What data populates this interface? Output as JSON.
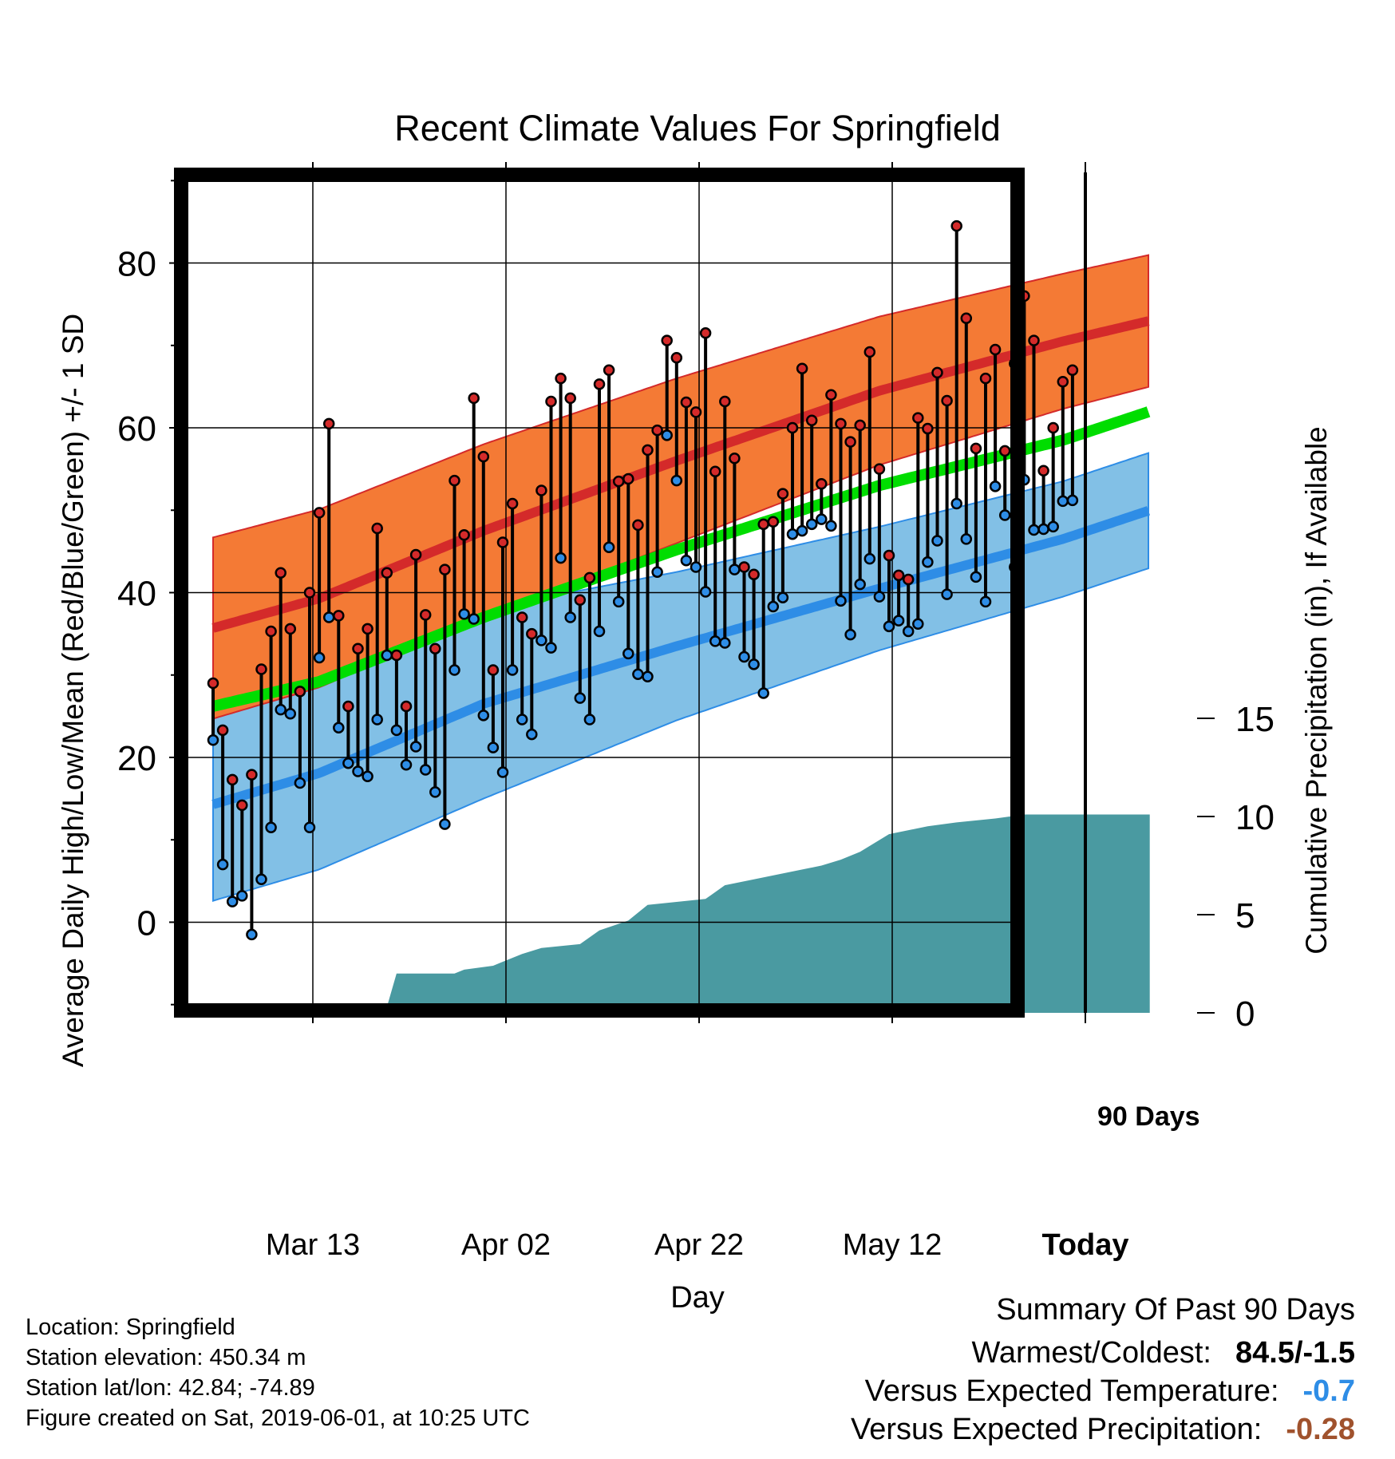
{
  "chart_data": {
    "type": "line",
    "title": "Recent Climate Values For Springfield",
    "xlabel": "Day",
    "ylabel": "Average Daily High/Low/Mean (Red/Blue/Green) +/- 1 SD",
    "y2label": "Cumulative Precipitation (in), If Available",
    "x_ticks": [
      "Mar 13",
      "Apr 02",
      "Apr 22",
      "May 12",
      "Today"
    ],
    "y_ticks": [
      "0",
      "20",
      "40",
      "60",
      "80"
    ],
    "y2_ticks": [
      "0",
      "5",
      "10",
      "15"
    ],
    "today_label": "90 Days",
    "ylim": [
      -11,
      91
    ],
    "y2lim": [
      0,
      50
    ],
    "grid": true,
    "colors": {
      "high": "#d42a2a",
      "high_band": "#f47a35",
      "low": "#2e8de6",
      "low_band": "#82c0e6",
      "mean": "#00dd00",
      "precip": "#4a9aa1"
    },
    "x_start": "Mar 02",
    "x_end": "Jun 10",
    "normals": [
      {
        "x": "Mar 02",
        "high": 35.7,
        "high_sd": 11,
        "low": 14.3,
        "low_sd": 11.7,
        "mean": 26.2
      },
      {
        "x": "Mar 13",
        "high": 39.3,
        "high_sd": 10.8,
        "low": 18.1,
        "low_sd": 11.7,
        "mean": 29.2
      },
      {
        "x": "Apr 02",
        "high": 47.5,
        "high_sd": 10.5,
        "low": 26.5,
        "low_sd": 11.5,
        "mean": 37
      },
      {
        "x": "Apr 22",
        "high": 56,
        "high_sd": 10,
        "low": 33.5,
        "low_sd": 9,
        "mean": 45.2
      },
      {
        "x": "May 12",
        "high": 64.5,
        "high_sd": 9,
        "low": 40.5,
        "low_sd": 7.5,
        "mean": 53
      },
      {
        "x": "Jun 01",
        "high": 70.5,
        "high_sd": 8.2,
        "low": 46.5,
        "low_sd": 7,
        "mean": 58.5
      },
      {
        "x": "Jun 10",
        "high": 73,
        "high_sd": 8,
        "low": 50,
        "low_sd": 7,
        "mean": 62
      }
    ],
    "daily_high": [
      29,
      23.3,
      17.3,
      14.2,
      17.9,
      30.7,
      35.3,
      42.4,
      35.6,
      28,
      40,
      49.7,
      60.5,
      37.2,
      26.2,
      33.2,
      35.6,
      47.8,
      42.4,
      32.4,
      26.2,
      44.6,
      37.3,
      33.2,
      42.8,
      53.6,
      47,
      63.6,
      56.5,
      30.6,
      46.1,
      50.8,
      37,
      35,
      52.4,
      63.2,
      66,
      63.6,
      39.1,
      41.8,
      65.3,
      67,
      53.5,
      53.8,
      48.2,
      57.3,
      59.7,
      70.6,
      68.5,
      63.1,
      61.9,
      71.5,
      54.7,
      63.2,
      56.3,
      43.1,
      42.2,
      48.3,
      48.6,
      52,
      60,
      67.2,
      60.9,
      53.2,
      64,
      60.5,
      58.3,
      60.3,
      69.2,
      55,
      44.5,
      42.1,
      41.6,
      61.2,
      59.9,
      66.7,
      63.3,
      84.5,
      73.3,
      57.5,
      66,
      69.5,
      57.2,
      67.8,
      76,
      70.6,
      54.8,
      60,
      65.6,
      67
    ],
    "daily_low": [
      22.1,
      7,
      2.5,
      3.2,
      -1.5,
      5.2,
      11.5,
      25.8,
      25.3,
      16.9,
      11.5,
      32.1,
      37,
      23.6,
      19.3,
      18.3,
      17.7,
      24.6,
      32.4,
      23.3,
      19.1,
      21.3,
      18.5,
      15.8,
      11.9,
      30.6,
      37.4,
      36.8,
      25.1,
      21.2,
      18.2,
      30.6,
      24.6,
      22.8,
      34.2,
      33.3,
      44.2,
      37,
      27.2,
      24.6,
      35.3,
      45.5,
      38.9,
      32.6,
      30.1,
      29.8,
      42.5,
      59.1,
      53.6,
      43.9,
      43.1,
      40.1,
      34.1,
      33.9,
      42.8,
      32.2,
      31.3,
      27.8,
      38.3,
      39.4,
      47.1,
      47.5,
      48.3,
      48.9,
      48.1,
      39,
      34.9,
      41,
      44.1,
      39.5,
      35.9,
      36.6,
      35.3,
      36.2,
      43.7,
      46.3,
      39.8,
      50.8,
      46.5,
      41.9,
      38.9,
      52.9,
      49.4,
      43.1,
      53.7,
      47.6,
      47.7,
      48,
      51.1,
      51.2
    ],
    "precip": [
      {
        "x": "Mar 02",
        "y": 0
      },
      {
        "x": "Mar 13",
        "y": 0
      },
      {
        "x": "Mar 15",
        "y": 0.1
      },
      {
        "x": "Mar 20",
        "y": 0.3
      },
      {
        "x": "Mar 21",
        "y": 2
      },
      {
        "x": "Mar 27",
        "y": 2
      },
      {
        "x": "Mar 28",
        "y": 2.2
      },
      {
        "x": "Mar 31",
        "y": 2.4
      },
      {
        "x": "Apr 04",
        "y": 2.6
      },
      {
        "x": "Apr 06",
        "y": 3
      },
      {
        "x": "Apr 08",
        "y": 3.3
      },
      {
        "x": "Apr 12",
        "y": 3.5
      },
      {
        "x": "Apr 14",
        "y": 4.2
      },
      {
        "x": "Apr 17",
        "y": 4.7
      },
      {
        "x": "Apr 19",
        "y": 5.5
      },
      {
        "x": "Apr 25",
        "y": 5.8
      },
      {
        "x": "Apr 27",
        "y": 6.5
      },
      {
        "x": "Apr 30",
        "y": 6.8
      },
      {
        "x": "May 03",
        "y": 7.2
      },
      {
        "x": "May 06",
        "y": 7.5
      },
      {
        "x": "May 08",
        "y": 7.8
      },
      {
        "x": "May 10",
        "y": 8.2
      },
      {
        "x": "May 13",
        "y": 9.1
      },
      {
        "x": "May 17",
        "y": 9.5
      },
      {
        "x": "May 20",
        "y": 9.7
      },
      {
        "x": "May 24",
        "y": 9.9
      },
      {
        "x": "May 27",
        "y": 10.1
      },
      {
        "x": "Jun 10",
        "y": 10.1
      }
    ]
  },
  "meta": {
    "location": "Location: Springfield",
    "elevation": "Station elevation: 450.34 m",
    "latlon": "Station lat/lon: 42.84; -74.89",
    "created": "Figure created on Sat, 2019-06-01, at 10:25 UTC"
  },
  "summary": {
    "title": "Summary Of Past 90 Days",
    "warmest_label": "Warmest/Coldest:",
    "warmest_value": "84.5/-1.5",
    "temp_label": "Versus Expected Temperature:",
    "temp_value": "-0.7",
    "temp_color": "#2e8de6",
    "precip_label": "Versus Expected Precipitation:",
    "precip_value": "-0.28",
    "precip_color": "#a0522d"
  }
}
